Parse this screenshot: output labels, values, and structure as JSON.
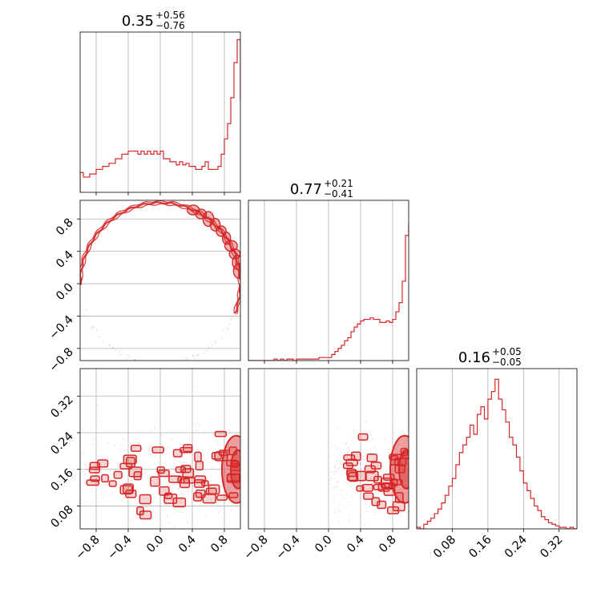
{
  "chart_data": {
    "type": "corner",
    "color": "#d62728",
    "grid": true,
    "panels": [
      {
        "kind": "hist",
        "row": 0,
        "col": 0,
        "param_index": 0,
        "title": {
          "median": "0.35",
          "plus": "+0.56",
          "minus": "−0.76"
        },
        "xlim": [
          -1,
          1
        ],
        "ylim": [
          0,
          1.05
        ],
        "edges": [
          -1,
          -0.96,
          -0.92,
          -0.88,
          -0.84,
          -0.8,
          -0.76,
          -0.72,
          -0.68,
          -0.64,
          -0.6,
          -0.56,
          -0.52,
          -0.48,
          -0.44,
          -0.4,
          -0.36,
          -0.32,
          -0.28,
          -0.24,
          -0.2,
          -0.16,
          -0.12,
          -0.08,
          -0.04,
          0,
          0.04,
          0.08,
          0.12,
          0.16,
          0.2,
          0.24,
          0.28,
          0.32,
          0.36,
          0.4,
          0.44,
          0.48,
          0.52,
          0.56,
          0.6,
          0.64,
          0.68,
          0.72,
          0.76,
          0.8,
          0.84,
          0.88,
          0.92,
          0.96,
          1
        ],
        "counts": [
          0.13,
          0.1,
          0.1,
          0.12,
          0.12,
          0.15,
          0.15,
          0.17,
          0.17,
          0.19,
          0.19,
          0.22,
          0.22,
          0.25,
          0.25,
          0.27,
          0.27,
          0.27,
          0.25,
          0.27,
          0.25,
          0.27,
          0.25,
          0.27,
          0.25,
          0.27,
          0.22,
          0.22,
          0.2,
          0.2,
          0.18,
          0.2,
          0.18,
          0.19,
          0.17,
          0.17,
          0.15,
          0.15,
          0.17,
          0.2,
          0.15,
          0.15,
          0.15,
          0.17,
          0.25,
          0.35,
          0.45,
          0.62,
          0.85,
          1.0,
          0.6
        ],
        "xtick_values": [
          -0.8,
          -0.4,
          0.0,
          0.4,
          0.8
        ]
      },
      {
        "kind": "hist",
        "row": 1,
        "col": 1,
        "param_index": 1,
        "title": {
          "median": "0.77",
          "plus": "+0.21",
          "minus": "−0.41"
        },
        "xlim": [
          -1,
          1
        ],
        "ylim": [
          0,
          1.05
        ],
        "edges": [
          -1,
          -0.96,
          -0.92,
          -0.88,
          -0.84,
          -0.8,
          -0.76,
          -0.72,
          -0.68,
          -0.64,
          -0.6,
          -0.56,
          -0.52,
          -0.48,
          -0.44,
          -0.4,
          -0.36,
          -0.32,
          -0.28,
          -0.24,
          -0.2,
          -0.16,
          -0.12,
          -0.08,
          -0.04,
          0,
          0.04,
          0.08,
          0.12,
          0.16,
          0.2,
          0.24,
          0.28,
          0.32,
          0.36,
          0.4,
          0.44,
          0.48,
          0.52,
          0.56,
          0.6,
          0.64,
          0.68,
          0.72,
          0.76,
          0.8,
          0.84,
          0.88,
          0.92,
          0.96,
          1
        ],
        "counts": [
          0.0,
          0.0,
          0.0,
          0.0,
          0.0,
          0.0,
          0.0,
          0.0,
          0.01,
          0.0,
          0.01,
          0.0,
          0.01,
          0.01,
          0.0,
          0.01,
          0.01,
          0.01,
          0.01,
          0.01,
          0.01,
          0.01,
          0.02,
          0.02,
          0.02,
          0.02,
          0.04,
          0.06,
          0.08,
          0.1,
          0.13,
          0.15,
          0.19,
          0.22,
          0.24,
          0.26,
          0.27,
          0.27,
          0.28,
          0.27,
          0.27,
          0.25,
          0.25,
          0.26,
          0.25,
          0.27,
          0.32,
          0.38,
          0.52,
          0.82,
          0.9
        ],
        "xtick_values": [
          -0.8,
          -0.4,
          0.0,
          0.4,
          0.8
        ]
      },
      {
        "kind": "hist",
        "row": 2,
        "col": 2,
        "param_index": 2,
        "title": {
          "median": "0.16",
          "plus": "+0.05",
          "minus": "−0.05"
        },
        "xlim": [
          0.0,
          0.36
        ],
        "ylim": [
          0,
          1.05
        ],
        "edges": [
          0.0,
          0.008,
          0.016,
          0.024,
          0.032,
          0.04,
          0.048,
          0.056,
          0.064,
          0.072,
          0.08,
          0.088,
          0.096,
          0.104,
          0.112,
          0.12,
          0.128,
          0.136,
          0.144,
          0.152,
          0.16,
          0.168,
          0.176,
          0.184,
          0.192,
          0.2,
          0.208,
          0.216,
          0.224,
          0.232,
          0.24,
          0.248,
          0.256,
          0.264,
          0.272,
          0.28,
          0.288,
          0.296,
          0.304,
          0.312,
          0.32,
          0.328,
          0.336,
          0.344,
          0.352,
          0.36
        ],
        "counts": [
          0.01,
          0.0,
          0.03,
          0.05,
          0.07,
          0.1,
          0.13,
          0.17,
          0.22,
          0.28,
          0.33,
          0.42,
          0.5,
          0.55,
          0.6,
          0.68,
          0.62,
          0.75,
          0.8,
          0.72,
          0.85,
          0.9,
          0.98,
          0.85,
          0.78,
          0.7,
          0.6,
          0.55,
          0.47,
          0.38,
          0.3,
          0.25,
          0.2,
          0.15,
          0.12,
          0.08,
          0.06,
          0.04,
          0.03,
          0.02,
          0.01,
          0.01,
          0.0,
          0.01,
          0.0
        ],
        "xtick_values": [
          0.08,
          0.16,
          0.24,
          0.32
        ]
      },
      {
        "kind": "contour",
        "row": 1,
        "col": 0,
        "x_param": 0,
        "y_param": 1,
        "xlim": [
          -1,
          1
        ],
        "ylim": [
          -0.95,
          1.03
        ],
        "ytick_values": [
          -0.8,
          -0.4,
          0.0,
          0.4,
          0.8
        ],
        "shape": "ring",
        "ring_center": [
          0,
          0
        ],
        "ring_radius": 1.0,
        "dense_region_x": [
          0.7,
          1.0
        ]
      },
      {
        "kind": "contour",
        "row": 2,
        "col": 0,
        "x_param": 0,
        "y_param": 2,
        "xlim": [
          -1,
          1
        ],
        "ylim": [
          0.03,
          0.38
        ],
        "ytick_values": [
          0.08,
          0.16,
          0.24,
          0.32
        ],
        "xtick_values": [
          -0.8,
          -0.4,
          0.0,
          0.4,
          0.8
        ],
        "center_y": 0.15,
        "dense_region_x": [
          0.6,
          1.0
        ]
      },
      {
        "kind": "contour",
        "row": 2,
        "col": 1,
        "x_param": 1,
        "y_param": 2,
        "xlim": [
          -1,
          1
        ],
        "ylim": [
          0.03,
          0.38
        ],
        "xtick_values": [
          -0.8,
          -0.4,
          0.0,
          0.4,
          0.8
        ],
        "center_y": 0.15,
        "dense_region_x": [
          0.2,
          1.0
        ]
      }
    ],
    "tick_labels": {
      "col0_x": [
        "−0.8",
        "−0.4",
        "0.0",
        "0.4",
        "0.8"
      ],
      "col1_x": [
        "−0.8",
        "−0.4",
        "0.0",
        "0.4",
        "0.8"
      ],
      "col2_x": [
        "0.08",
        "0.16",
        "0.24",
        "0.32"
      ],
      "row1_y": [
        "−0.8",
        "−0.4",
        "0.0",
        "0.4",
        "0.8"
      ],
      "row2_y": [
        "0.08",
        "0.16",
        "0.24",
        "0.32"
      ]
    }
  }
}
